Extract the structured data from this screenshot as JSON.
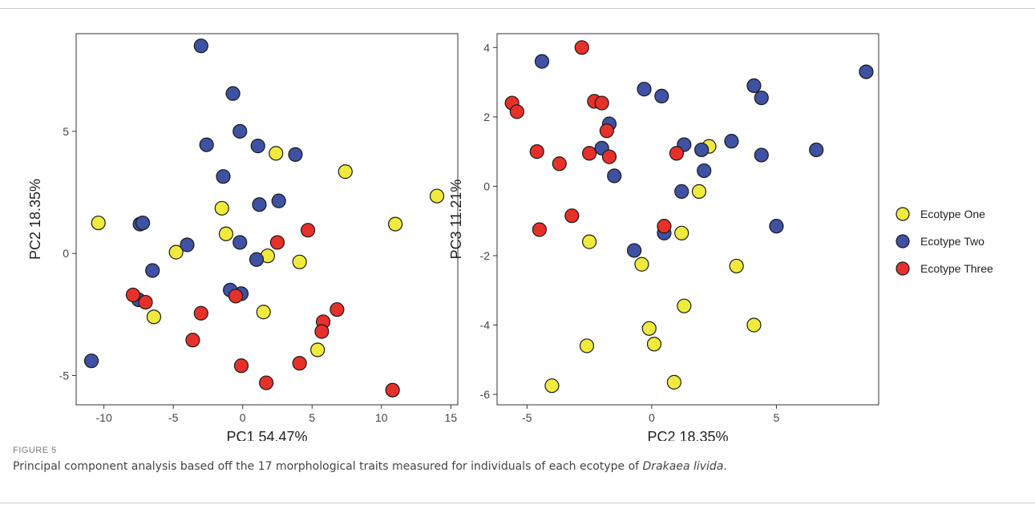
{
  "caption": {
    "label": "FIGURE 5",
    "text_before": "Principal component analysis based off the 17 morphological traits measured for individuals of each ecotype of ",
    "species": "Drakaea livida",
    "text_after": "."
  },
  "colors": {
    "Ecotype One": "#f0ea3c",
    "Ecotype Two": "#3f51a3",
    "Ecotype Three": "#e8302a"
  },
  "legend": {
    "position": "right",
    "items": [
      "Ecotype One",
      "Ecotype Two",
      "Ecotype Three"
    ]
  },
  "chart_data": [
    {
      "type": "scatter",
      "xlabel": "PC1 54.47%",
      "ylabel": "PC2 18.35%",
      "xlim": [
        -12,
        15.5
      ],
      "ylim": [
        -6.2,
        9
      ],
      "xticks": [
        -10,
        -5,
        0,
        5,
        10,
        15
      ],
      "yticks": [
        -5,
        0,
        5
      ],
      "grid": false,
      "series": [
        {
          "name": "Ecotype One",
          "points": [
            [
              -10.4,
              1.25
            ],
            [
              -4.8,
              0.05
            ],
            [
              -6.4,
              -2.6
            ],
            [
              -1.5,
              1.85
            ],
            [
              -1.2,
              0.8
            ],
            [
              2.4,
              4.1
            ],
            [
              7.4,
              3.35
            ],
            [
              1.8,
              -0.1
            ],
            [
              4.1,
              -0.35
            ],
            [
              1.5,
              -2.4
            ],
            [
              5.4,
              -3.95
            ],
            [
              11.0,
              1.2
            ],
            [
              14.0,
              2.35
            ]
          ]
        },
        {
          "name": "Ecotype Two",
          "points": [
            [
              -3.0,
              8.5
            ],
            [
              -0.7,
              6.55
            ],
            [
              -2.6,
              4.45
            ],
            [
              -0.2,
              5.0
            ],
            [
              1.1,
              4.4
            ],
            [
              3.8,
              4.05
            ],
            [
              -1.4,
              3.15
            ],
            [
              2.6,
              2.15
            ],
            [
              1.2,
              2.0
            ],
            [
              -7.4,
              1.2
            ],
            [
              -7.2,
              1.25
            ],
            [
              -4.0,
              0.35
            ],
            [
              -0.2,
              0.45
            ],
            [
              1.0,
              -0.25
            ],
            [
              -6.5,
              -0.7
            ],
            [
              -0.9,
              -1.5
            ],
            [
              -0.1,
              -1.65
            ],
            [
              -7.5,
              -1.9
            ],
            [
              -10.9,
              -4.4
            ]
          ]
        },
        {
          "name": "Ecotype Three",
          "points": [
            [
              4.7,
              0.95
            ],
            [
              2.5,
              0.45
            ],
            [
              -7.9,
              -1.7
            ],
            [
              -7.0,
              -2.0
            ],
            [
              -0.5,
              -1.75
            ],
            [
              -3.0,
              -2.45
            ],
            [
              6.8,
              -2.3
            ],
            [
              5.8,
              -2.8
            ],
            [
              5.7,
              -3.2
            ],
            [
              -3.6,
              -3.55
            ],
            [
              -0.1,
              -4.6
            ],
            [
              4.1,
              -4.5
            ],
            [
              1.7,
              -5.3
            ],
            [
              10.8,
              -5.6
            ]
          ]
        }
      ]
    },
    {
      "type": "scatter",
      "xlabel": "PC2 18.35%",
      "ylabel": "PC3 11.21%",
      "xlim": [
        -6.2,
        9.1
      ],
      "ylim": [
        -6.3,
        4.4
      ],
      "xticks": [
        -5,
        0,
        5
      ],
      "yticks": [
        -6,
        -4,
        -2,
        0,
        2,
        4
      ],
      "grid": false,
      "series": [
        {
          "name": "Ecotype One",
          "points": [
            [
              2.3,
              1.15
            ],
            [
              1.9,
              -0.15
            ],
            [
              1.2,
              -1.35
            ],
            [
              -2.5,
              -1.6
            ],
            [
              -0.4,
              -2.25
            ],
            [
              3.4,
              -2.3
            ],
            [
              1.3,
              -3.45
            ],
            [
              -0.1,
              -4.1
            ],
            [
              0.1,
              -4.55
            ],
            [
              -2.6,
              -4.6
            ],
            [
              4.1,
              -4.0
            ],
            [
              -4.0,
              -5.75
            ],
            [
              0.9,
              -5.65
            ]
          ]
        },
        {
          "name": "Ecotype Two",
          "points": [
            [
              -4.4,
              3.6
            ],
            [
              -0.3,
              2.8
            ],
            [
              0.4,
              2.6
            ],
            [
              4.1,
              2.9
            ],
            [
              4.4,
              2.55
            ],
            [
              8.6,
              3.3
            ],
            [
              -1.7,
              1.8
            ],
            [
              -2.0,
              1.1
            ],
            [
              1.3,
              1.2
            ],
            [
              2.0,
              1.05
            ],
            [
              3.2,
              1.3
            ],
            [
              4.4,
              0.9
            ],
            [
              6.6,
              1.05
            ],
            [
              -1.5,
              0.3
            ],
            [
              2.1,
              0.45
            ],
            [
              1.2,
              -0.15
            ],
            [
              0.5,
              -1.35
            ],
            [
              5.0,
              -1.15
            ],
            [
              -0.7,
              -1.85
            ]
          ]
        },
        {
          "name": "Ecotype Three",
          "points": [
            [
              -2.8,
              4.0
            ],
            [
              -5.6,
              2.4
            ],
            [
              -5.4,
              2.15
            ],
            [
              -2.3,
              2.45
            ],
            [
              -2.0,
              2.4
            ],
            [
              -1.8,
              1.6
            ],
            [
              -4.6,
              1.0
            ],
            [
              -2.5,
              0.95
            ],
            [
              -1.7,
              0.85
            ],
            [
              1.0,
              0.95
            ],
            [
              -3.7,
              0.65
            ],
            [
              -3.2,
              -0.85
            ],
            [
              -4.5,
              -1.25
            ],
            [
              0.5,
              -1.15
            ]
          ]
        }
      ]
    }
  ]
}
